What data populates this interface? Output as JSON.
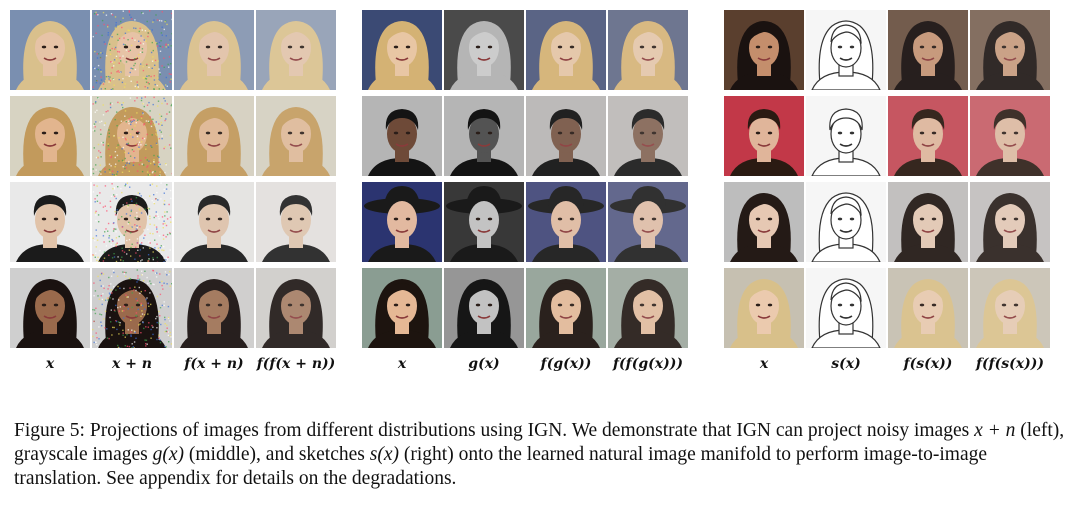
{
  "panels": [
    {
      "labels": [
        "x",
        "x + n",
        "f(x + n)",
        "f(f(x + n))"
      ],
      "rows": [
        {
          "bg": "#7a8fb0",
          "skin": "#e6c3a6",
          "hair": "#d9c08c",
          "style": "long"
        },
        {
          "bg": "#d7d3c2",
          "skin": "#e2b58e",
          "hair": "#c29a5c",
          "style": "long"
        },
        {
          "bg": "#e9e9e9",
          "skin": "#e1c3a9",
          "hair": "#1b1b1b",
          "style": "short"
        },
        {
          "bg": "#cfcfcf",
          "skin": "#9a6a4c",
          "hair": "#1a1210",
          "style": "curly"
        }
      ]
    },
    {
      "labels": [
        "x",
        "g(x)",
        "f(g(x))",
        "f(f(g(x)))"
      ],
      "rows": [
        {
          "bg": "#3b4a74",
          "skin": "#e8c6a4",
          "hair": "#d4b274",
          "style": "long"
        },
        {
          "bg": "#b5b5b5",
          "skin": "#6e4a38",
          "hair": "#141414",
          "style": "short"
        },
        {
          "bg": "#2b3470",
          "skin": "#e2b9a0",
          "hair": "#1a1a1a",
          "style": "hat"
        },
        {
          "bg": "#8a9d92",
          "skin": "#e5b895",
          "hair": "#1d140f",
          "style": "long"
        }
      ]
    },
    {
      "labels": [
        "x",
        "s(x)",
        "f(s(x))",
        "f(f(s(x)))"
      ],
      "rows": [
        {
          "bg": "#5a3f2e",
          "skin": "#c48e6c",
          "hair": "#1a1210",
          "style": "long"
        },
        {
          "bg": "#c23848",
          "skin": "#e0b59a",
          "hair": "#2a1a12",
          "style": "short"
        },
        {
          "bg": "#bdbdbd",
          "skin": "#e6c8b3",
          "hair": "#241a16",
          "style": "long"
        },
        {
          "bg": "#c6c0b1",
          "skin": "#ebcaae",
          "hair": "#d8c08a",
          "style": "curly"
        }
      ]
    }
  ],
  "caption": {
    "fig": "Figure 5:",
    "t1": " Projections of images from different distributions using IGN. We demonstrate that IGN can project noisy images ",
    "m1": "x + n",
    "t2": " (left), grayscale images ",
    "m2": "g(x)",
    "t3": " (middle), and sketches ",
    "m3": "s(x)",
    "t4": " (right) onto the learned natural image manifold to perform image-to-image translation. See appendix for details on the degradations."
  }
}
